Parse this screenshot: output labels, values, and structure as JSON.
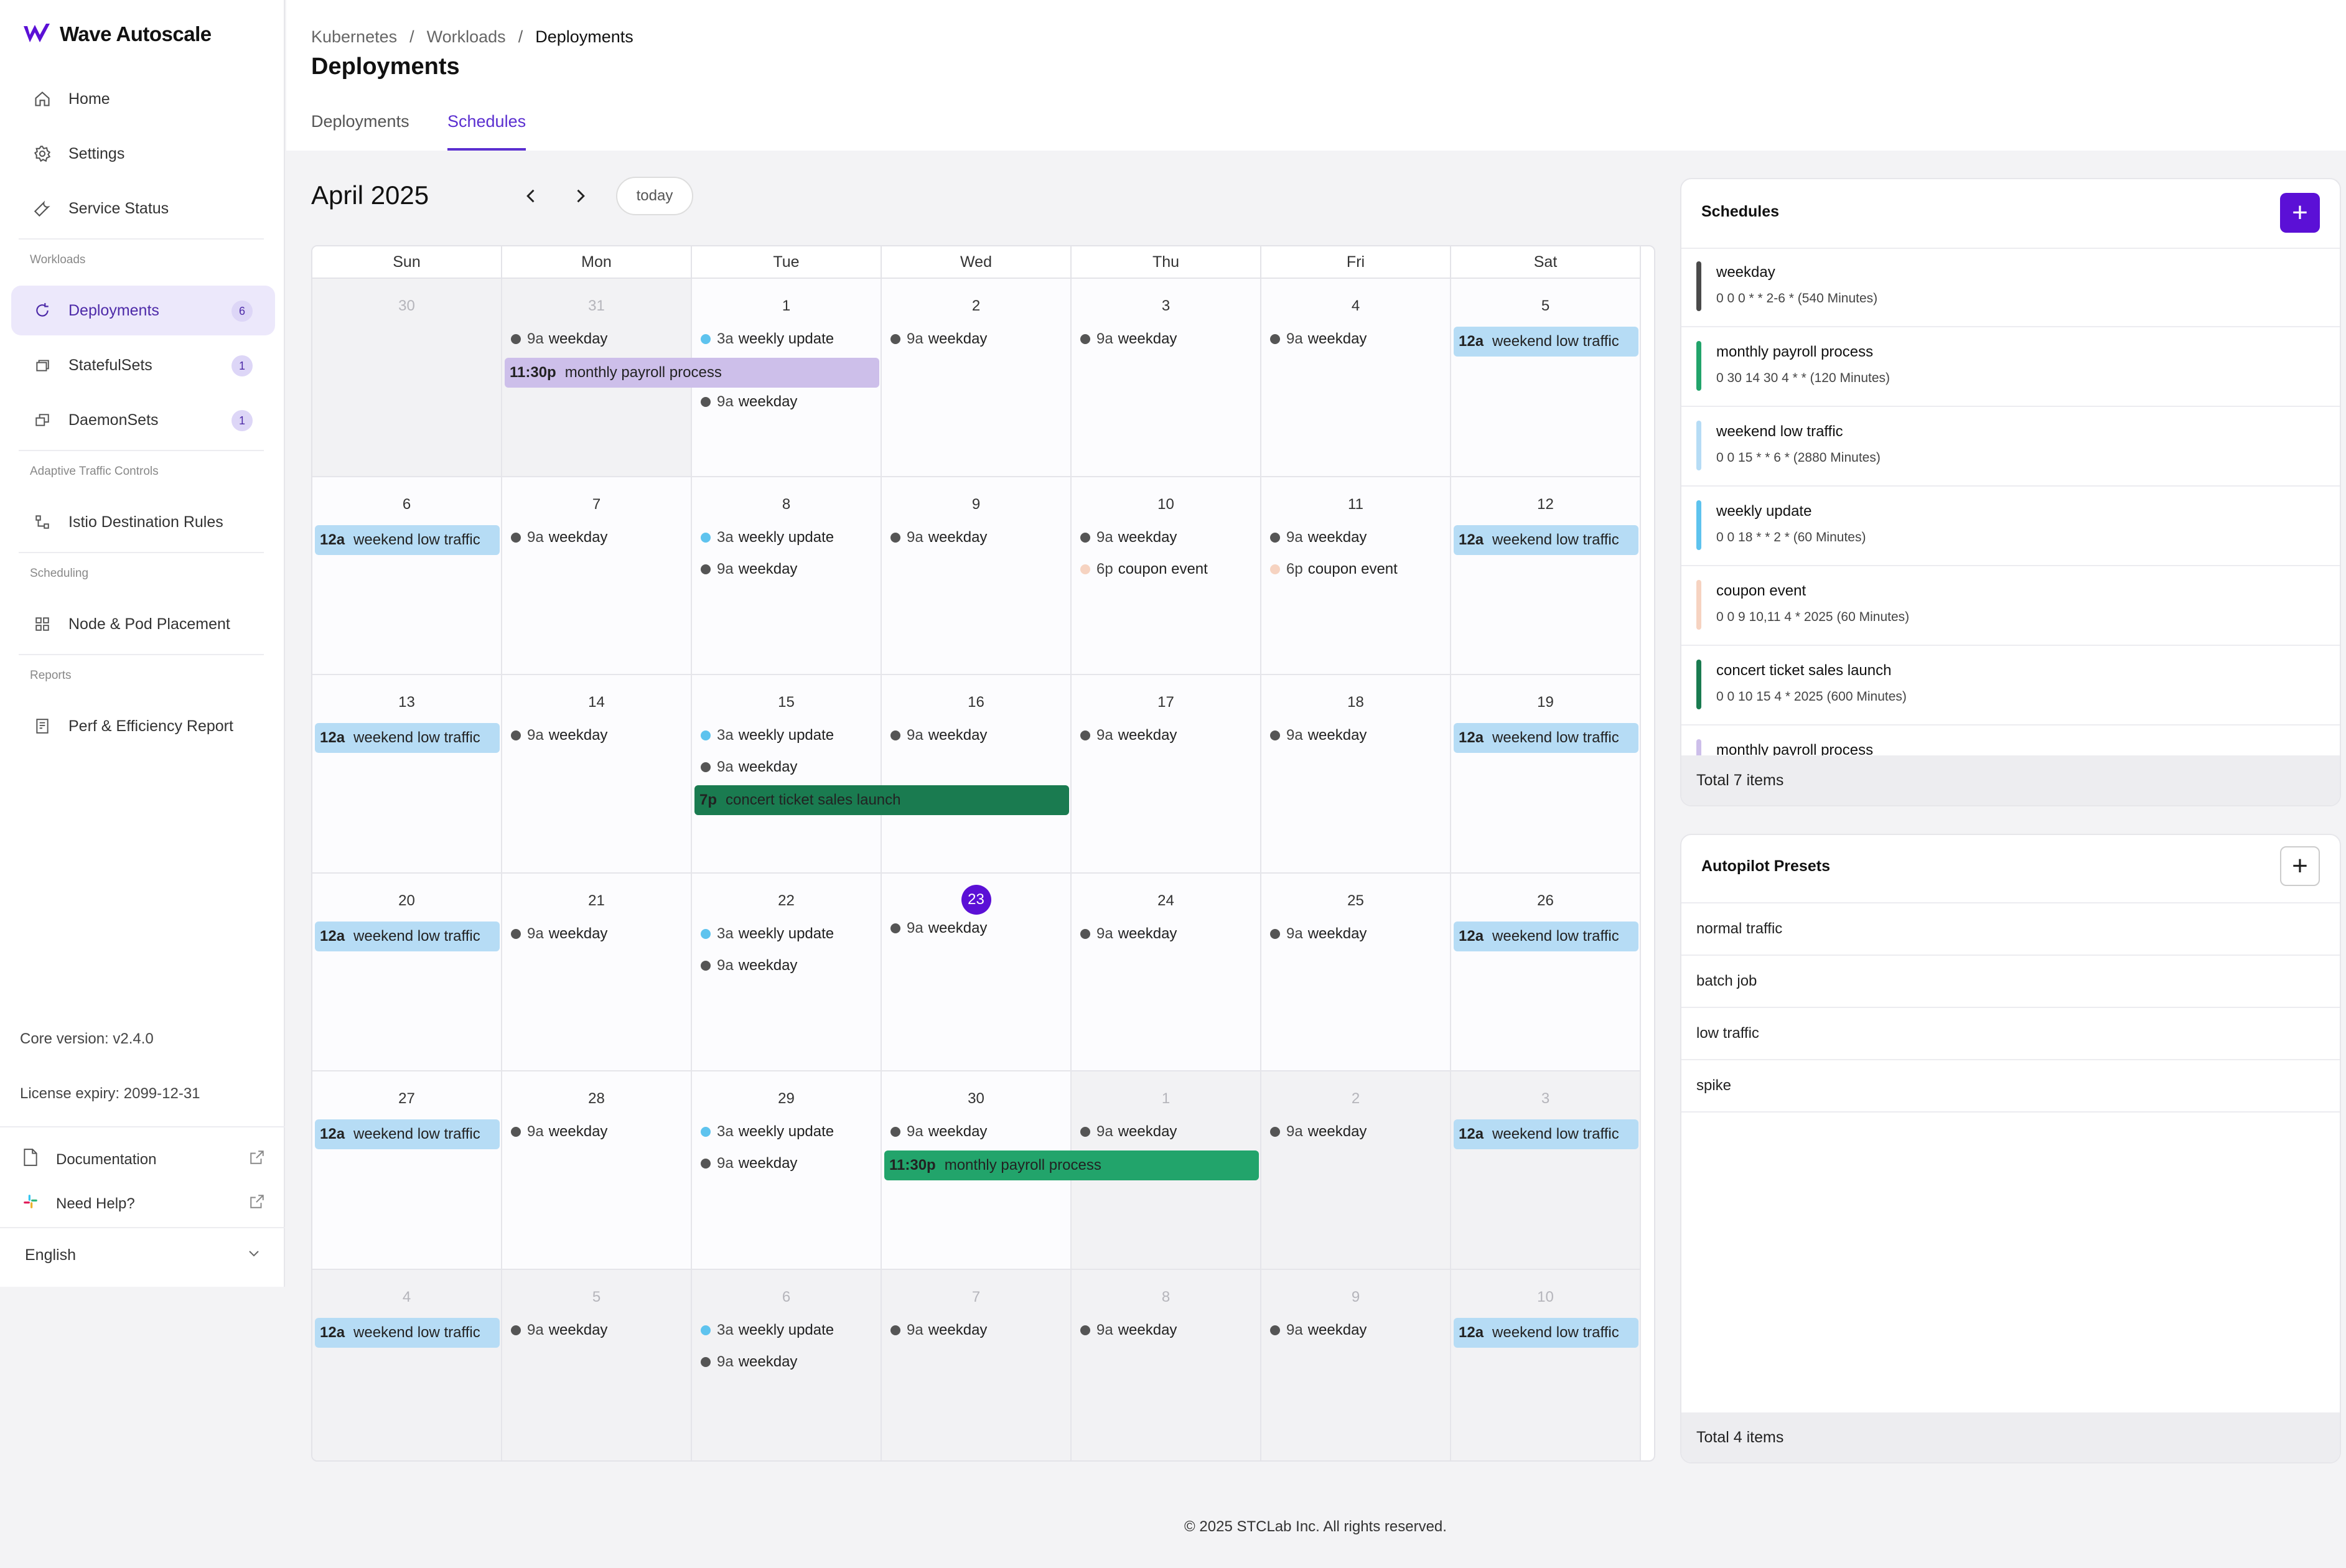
{
  "app": {
    "name": "Wave Autoscale"
  },
  "sidebar": {
    "nav": [
      {
        "label": "Home",
        "icon": "home-icon"
      },
      {
        "label": "Settings",
        "icon": "gear-icon"
      },
      {
        "label": "Service Status",
        "icon": "wrench-icon"
      }
    ],
    "sections": {
      "workloads": "Workloads",
      "traffic": "Adaptive Traffic Controls",
      "scheduling": "Scheduling",
      "reports": "Reports"
    },
    "workloads": [
      {
        "label": "Deployments",
        "badge": "6",
        "active": true
      },
      {
        "label": "StatefulSets",
        "badge": "1"
      },
      {
        "label": "DaemonSets",
        "badge": "1"
      }
    ],
    "traffic_item": "Istio Destination Rules",
    "scheduling_item": "Node & Pod Placement",
    "reports_item": "Perf & Efficiency Report",
    "core_version": "Core version: v2.4.0",
    "license": "License expiry: 2099-12-31",
    "documentation": "Documentation",
    "help": "Need Help?",
    "language": "English"
  },
  "header": {
    "breadcrumb": [
      "Kubernetes",
      "/",
      "Workloads",
      "/",
      "Deployments"
    ],
    "title": "Deployments",
    "tabs": [
      {
        "label": "Deployments",
        "active": false
      },
      {
        "label": "Schedules",
        "active": true
      }
    ]
  },
  "calendar": {
    "month_title": "April 2025",
    "prev": "‹",
    "next": "›",
    "today_label": "today",
    "weekdays": [
      "Sun",
      "Mon",
      "Tue",
      "Wed",
      "Thu",
      "Fri",
      "Sat"
    ],
    "weeks": [
      [
        "30",
        "31",
        "1",
        "2",
        "3",
        "4",
        "5"
      ],
      [
        "6",
        "7",
        "8",
        "9",
        "10",
        "11",
        "12"
      ],
      [
        "13",
        "14",
        "15",
        "16",
        "17",
        "18",
        "19"
      ],
      [
        "20",
        "21",
        "22",
        "23",
        "24",
        "25",
        "26"
      ],
      [
        "27",
        "28",
        "29",
        "30",
        "1",
        "2",
        "3"
      ],
      [
        "4",
        "5",
        "6",
        "7",
        "8",
        "9",
        "10"
      ]
    ],
    "other_month": [
      [
        true,
        true,
        false,
        false,
        false,
        false,
        false
      ],
      [
        false,
        false,
        false,
        false,
        false,
        false,
        false
      ],
      [
        false,
        false,
        false,
        false,
        false,
        false,
        false
      ],
      [
        false,
        false,
        false,
        false,
        false,
        false,
        false
      ],
      [
        false,
        false,
        false,
        false,
        true,
        true,
        true
      ],
      [
        true,
        true,
        true,
        true,
        true,
        true,
        true
      ]
    ],
    "today": {
      "week": 3,
      "day": 3
    },
    "colors": {
      "weekday": "#555555",
      "weekly_update": "#5ec3ee",
      "coupon_event": "#f6d3c1",
      "weekend": "#b6dcf5",
      "payroll_april": "#cdbfea",
      "payroll_may": "#22a46b",
      "concert": "#1a7b50"
    },
    "events": {
      "weekday_time": "9a",
      "weekday_name": "weekday",
      "weekly_update_time": "3a",
      "weekly_update_name": "weekly update",
      "coupon_time": "6p",
      "coupon_name": "coupon event",
      "weekend_time": "12a",
      "weekend_name": "weekend low traffic",
      "payroll_time": "11:30p",
      "payroll_name": "monthly payroll process",
      "concert_time": "7p",
      "concert_name": "concert ticket sales launch"
    }
  },
  "schedules_panel": {
    "title": "Schedules",
    "add": "+",
    "items": [
      {
        "name": "weekday",
        "expr": "0 0 0 * * 2-6 * (540 Minutes)",
        "color": "#4a4a4a"
      },
      {
        "name": "monthly payroll process",
        "expr": "0 30 14 30 4 * * (120 Minutes)",
        "color": "#22a46b"
      },
      {
        "name": "weekend low traffic",
        "expr": "0 0 15 * * 6 * (2880 Minutes)",
        "color": "#b6dcf5"
      },
      {
        "name": "weekly update",
        "expr": "0 0 18 * * 2 * (60 Minutes)",
        "color": "#5ec3ee"
      },
      {
        "name": "coupon event",
        "expr": "0 0 9 10,11 4 * 2025 (60 Minutes)",
        "color": "#f6d3c1"
      },
      {
        "name": "concert ticket sales launch",
        "expr": "0 0 10 15 4 * 2025 (600 Minutes)",
        "color": "#1a7b50"
      },
      {
        "name": "monthly payroll process",
        "expr": "",
        "color": "#cdbfea"
      }
    ],
    "footer": "Total 7 items"
  },
  "presets_panel": {
    "title": "Autopilot Presets",
    "add": "+",
    "items": [
      "normal traffic",
      "batch job",
      "low traffic",
      "spike"
    ],
    "footer": "Total 4 items"
  },
  "footer": "© 2025 STCLab Inc. All rights reserved."
}
